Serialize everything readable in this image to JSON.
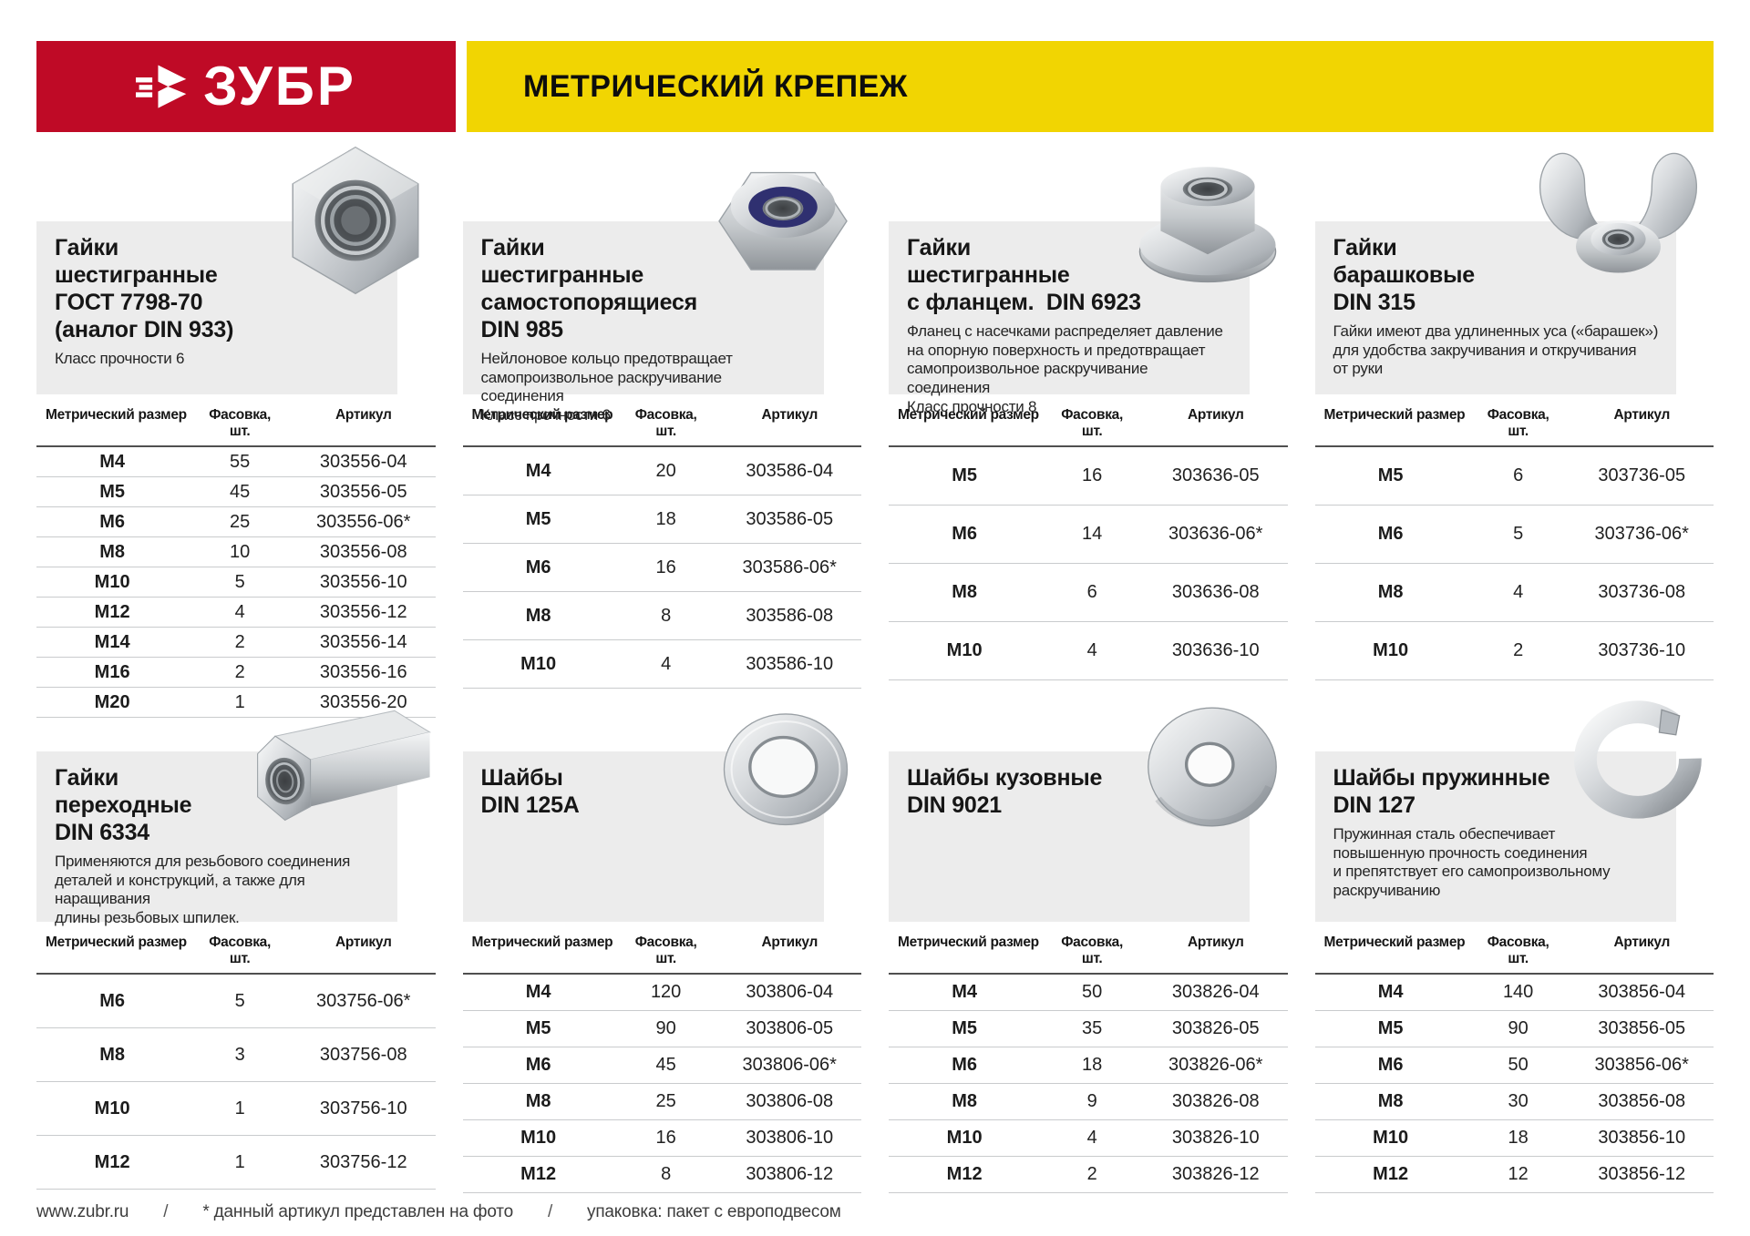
{
  "header": {
    "logo_text": "ЗУБР",
    "banner_title": "МЕТРИЧЕСКИЙ КРЕПЕЖ",
    "colors": {
      "brand_red": "#bf0a26",
      "brand_yellow": "#f1d502"
    }
  },
  "table_headers": {
    "size_label": "Метрический размер",
    "pack_label": "Фасовка,\nшт.",
    "article_label": "Артикул"
  },
  "cards": [
    {
      "title": "Гайки\nшестигранные\nГОСТ 7798-70\n(аналог DIN 933)",
      "description": "Класс прочности 6",
      "image": "hex-nut",
      "rows": [
        {
          "size": "M4",
          "pack": "55",
          "article": "303556-04"
        },
        {
          "size": "M5",
          "pack": "45",
          "article": "303556-05"
        },
        {
          "size": "M6",
          "pack": "25",
          "article": "303556-06*"
        },
        {
          "size": "M8",
          "pack": "10",
          "article": "303556-08"
        },
        {
          "size": "M10",
          "pack": "5",
          "article": "303556-10"
        },
        {
          "size": "M12",
          "pack": "4",
          "article": "303556-12"
        },
        {
          "size": "M14",
          "pack": "2",
          "article": "303556-14"
        },
        {
          "size": "M16",
          "pack": "2",
          "article": "303556-16"
        },
        {
          "size": "M20",
          "pack": "1",
          "article": "303556-20"
        }
      ]
    },
    {
      "title": "Гайки\nшестигранные\nсамостопорящиеся\nDIN 985",
      "description": "Нейлоновое кольцо предотвращает\nсамопроизвольное раскручивание соединения\nКласс прочности 6",
      "image": "lock-nut",
      "rows": [
        {
          "size": "M4",
          "pack": "20",
          "article": "303586-04"
        },
        {
          "size": "M5",
          "pack": "18",
          "article": "303586-05"
        },
        {
          "size": "M6",
          "pack": "16",
          "article": "303586-06*"
        },
        {
          "size": "M8",
          "pack": "8",
          "article": "303586-08"
        },
        {
          "size": "M10",
          "pack": "4",
          "article": "303586-10"
        }
      ]
    },
    {
      "title": "Гайки\nшестигранные\nс фланцем.  DIN 6923",
      "description": "Фланец с насечками распределяет давление\nна опорную поверхность и предотвращает\nсамопроизвольное раскручивание соединения\nКласс прочности 8",
      "image": "flange-nut",
      "rows": [
        {
          "size": "M5",
          "pack": "16",
          "article": "303636-05"
        },
        {
          "size": "M6",
          "pack": "14",
          "article": "303636-06*"
        },
        {
          "size": "M8",
          "pack": "6",
          "article": "303636-08"
        },
        {
          "size": "M10",
          "pack": "4",
          "article": "303636-10"
        }
      ]
    },
    {
      "title": "Гайки\nбарашковые\nDIN 315",
      "description": "Гайки имеют два удлиненных уса («барашек»)\nдля удобства закручивания и откручивания\nот руки",
      "image": "wing-nut",
      "rows": [
        {
          "size": "M5",
          "pack": "6",
          "article": "303736-05"
        },
        {
          "size": "M6",
          "pack": "5",
          "article": "303736-06*"
        },
        {
          "size": "M8",
          "pack": "4",
          "article": "303736-08"
        },
        {
          "size": "M10",
          "pack": "2",
          "article": "303736-10"
        }
      ]
    },
    {
      "title": "Гайки\nпереходные\nDIN 6334",
      "description": "Применяются для резьбового соединения\nдеталей и конструкций, а также для наращивания\nдлины резьбовых шпилек.",
      "image": "coupling-nut",
      "rows": [
        {
          "size": "M6",
          "pack": "5",
          "article": "303756-06*"
        },
        {
          "size": "M8",
          "pack": "3",
          "article": "303756-08"
        },
        {
          "size": "M10",
          "pack": "1",
          "article": "303756-10"
        },
        {
          "size": "M12",
          "pack": "1",
          "article": "303756-12"
        }
      ]
    },
    {
      "title": "Шайбы\nDIN 125A",
      "description": "",
      "image": "flat-washer",
      "rows": [
        {
          "size": "M4",
          "pack": "120",
          "article": "303806-04"
        },
        {
          "size": "M5",
          "pack": "90",
          "article": "303806-05"
        },
        {
          "size": "M6",
          "pack": "45",
          "article": "303806-06*"
        },
        {
          "size": "M8",
          "pack": "25",
          "article": "303806-08"
        },
        {
          "size": "M10",
          "pack": "16",
          "article": "303806-10"
        },
        {
          "size": "M12",
          "pack": "8",
          "article": "303806-12"
        }
      ]
    },
    {
      "title": "Шайбы кузовные\nDIN 9021",
      "description": "",
      "image": "fender-washer",
      "rows": [
        {
          "size": "M4",
          "pack": "50",
          "article": "303826-04"
        },
        {
          "size": "M5",
          "pack": "35",
          "article": "303826-05"
        },
        {
          "size": "M6",
          "pack": "18",
          "article": "303826-06*"
        },
        {
          "size": "M8",
          "pack": "9",
          "article": "303826-08"
        },
        {
          "size": "M10",
          "pack": "4",
          "article": "303826-10"
        },
        {
          "size": "M12",
          "pack": "2",
          "article": "303826-12"
        }
      ]
    },
    {
      "title": "Шайбы пружинные\nDIN 127",
      "description": "Пружинная сталь обеспечивает\nповышенную прочность соединения\nи препятствует его самопроизвольному\nраскручиванию",
      "image": "spring-washer",
      "rows": [
        {
          "size": "M4",
          "pack": "140",
          "article": "303856-04"
        },
        {
          "size": "M5",
          "pack": "90",
          "article": "303856-05"
        },
        {
          "size": "M6",
          "pack": "50",
          "article": "303856-06*"
        },
        {
          "size": "M8",
          "pack": "30",
          "article": "303856-08"
        },
        {
          "size": "M10",
          "pack": "18",
          "article": "303856-10"
        },
        {
          "size": "M12",
          "pack": "12",
          "article": "303856-12"
        }
      ]
    }
  ],
  "footer": {
    "items": [
      "www.zubr.ru",
      "/",
      "* данный артикул представлен на фото",
      "/",
      "упаковка: пакет с европодвесом"
    ]
  }
}
